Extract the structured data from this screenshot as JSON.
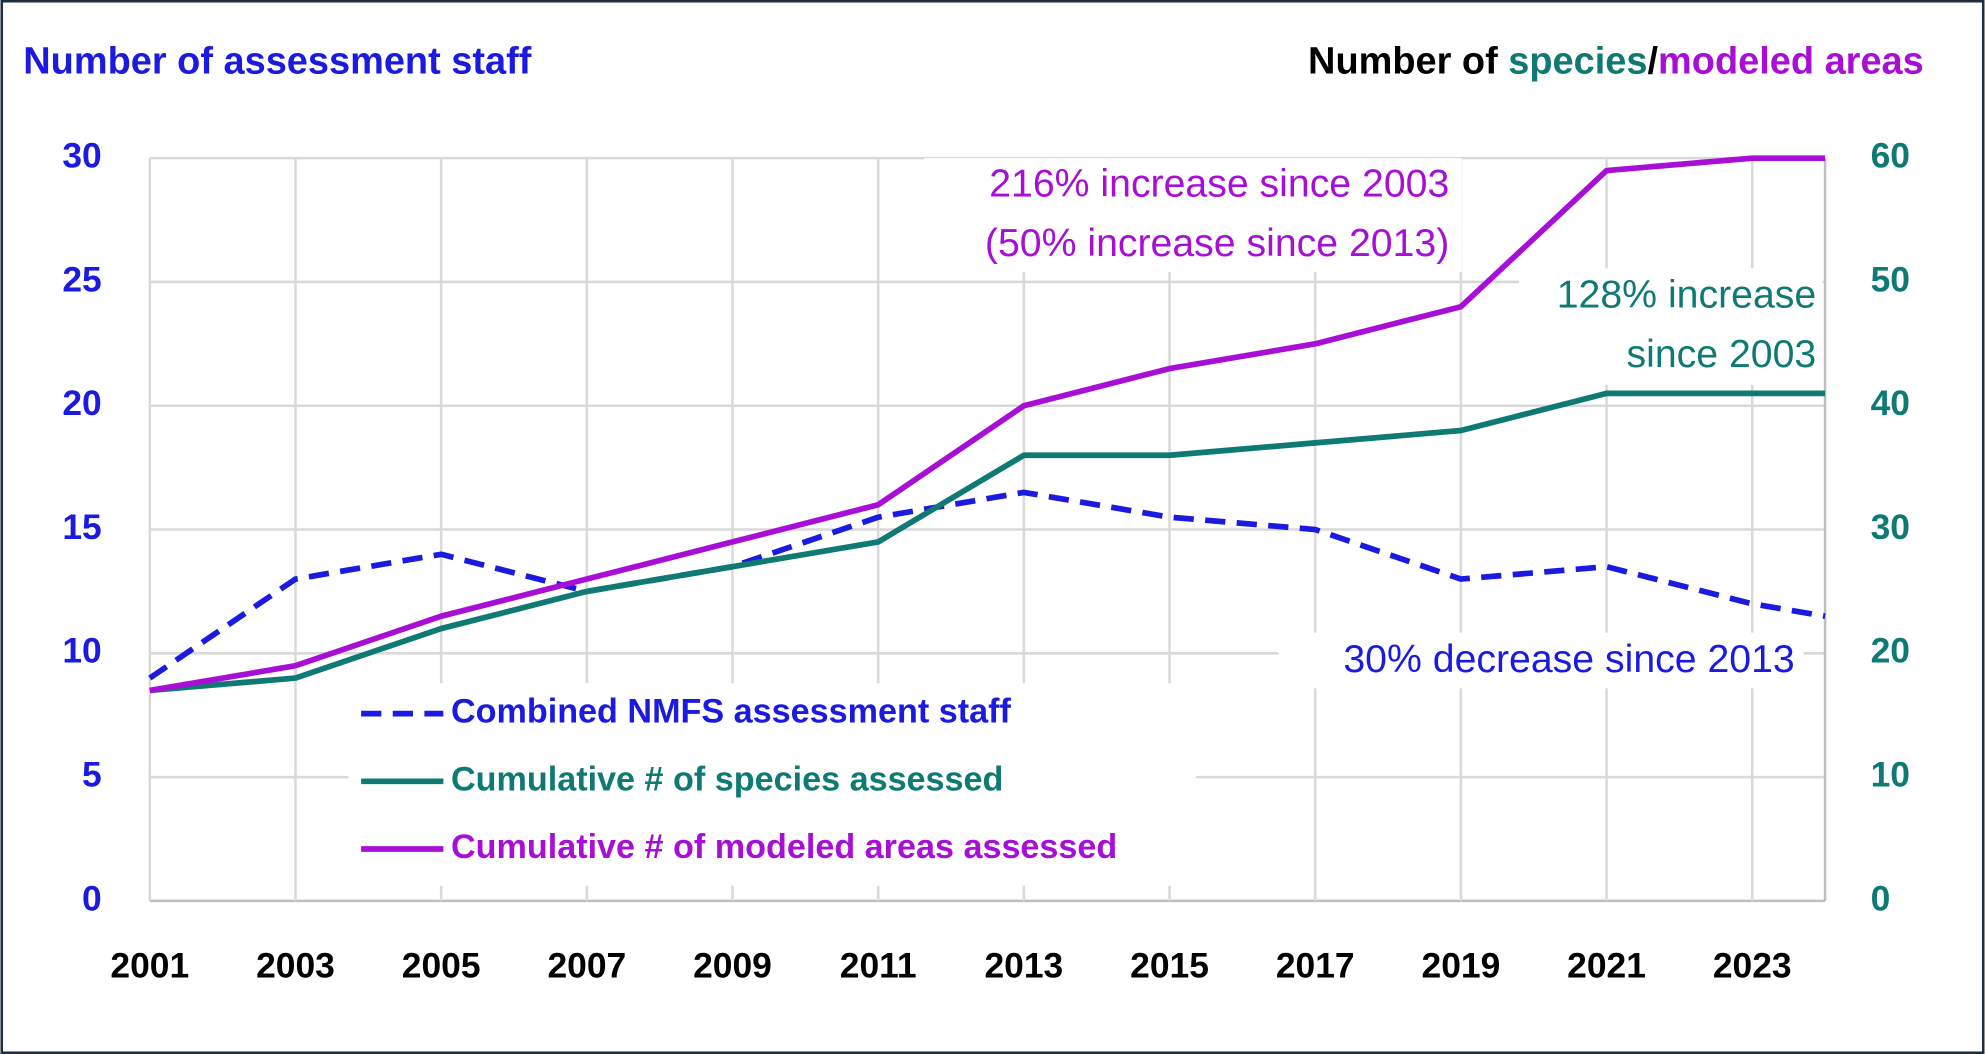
{
  "chart_data": {
    "type": "line",
    "y_label": "Number of assessment staff",
    "y2_label_parts": [
      "Number of ",
      "species",
      "/",
      "modeled areas"
    ],
    "y2_label_colors": [
      "#000000",
      "#0f7a73",
      "#000000",
      "#a80fd6"
    ],
    "x": [
      2001,
      2003,
      2005,
      2007,
      2009,
      2011,
      2013,
      2015,
      2017,
      2019,
      2021,
      2023,
      2024
    ],
    "xlim": [
      2001,
      2024
    ],
    "xticks": [
      2001,
      2003,
      2005,
      2007,
      2009,
      2011,
      2013,
      2015,
      2017,
      2019,
      2021,
      2023
    ],
    "ylim": [
      0,
      30
    ],
    "yticks": [
      0,
      5,
      10,
      15,
      20,
      25,
      30
    ],
    "y2lim": [
      0,
      60
    ],
    "y2ticks": [
      0,
      10,
      20,
      30,
      40,
      50,
      60
    ],
    "grid": true,
    "series": [
      {
        "name": "Combined NMFS assessment staff",
        "color": "#1a1ae0",
        "dash": true,
        "axis": "y",
        "values": [
          9,
          13,
          14,
          12.5,
          13.5,
          15.5,
          16.5,
          15.5,
          15,
          13,
          13.5,
          12,
          11.5
        ]
      },
      {
        "name": "Cumulative # of species assessed",
        "color": "#0f7a73",
        "dash": false,
        "axis": "y2",
        "values": [
          17,
          18,
          22,
          25,
          27,
          29,
          36,
          36,
          37,
          38,
          41,
          41,
          41
        ]
      },
      {
        "name": "Cumulative # of modeled areas assessed",
        "color": "#a80fd6",
        "dash": false,
        "axis": "y2",
        "values": [
          17,
          19,
          23,
          26,
          29,
          32,
          40,
          43,
          45,
          48,
          59,
          60,
          60
        ]
      }
    ],
    "annotations": [
      {
        "text": "216% increase since 2003",
        "color": "#a80fd6"
      },
      {
        "text": "(50% increase since 2013)",
        "color": "#a80fd6"
      },
      {
        "text": "128% increase",
        "color": "#0f7a73"
      },
      {
        "text": "since 2003",
        "color": "#0f7a73"
      },
      {
        "text": "30% decrease since 2013",
        "color": "#1a1ae0"
      }
    ]
  }
}
